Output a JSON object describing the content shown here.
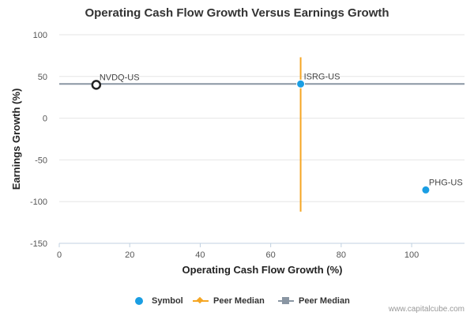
{
  "chart_data": {
    "type": "scatter",
    "title": "Operating Cash Flow Growth Versus Earnings Growth",
    "xlabel": "Operating Cash Flow Growth (%)",
    "ylabel": "Earnings Growth (%)",
    "xlim": [
      0,
      115
    ],
    "ylim": [
      -150,
      100
    ],
    "x_ticks": [
      0,
      20,
      40,
      60,
      80,
      100
    ],
    "y_ticks": [
      100,
      50,
      0,
      -50,
      -100,
      -150
    ],
    "grid": "horizontal",
    "points": [
      {
        "label": "NVDQ-US",
        "x": 10.5,
        "y": 40,
        "style": "hollow"
      },
      {
        "label": "ISRG-US",
        "x": 68.5,
        "y": 41,
        "style": "filled"
      },
      {
        "label": "PHG-US",
        "x": 104,
        "y": -86,
        "style": "filled"
      }
    ],
    "peer_median_x": {
      "x": 68.5,
      "y_from": -112,
      "y_to": 73
    },
    "peer_median_y": {
      "y": 41,
      "x_from": 0,
      "x_to": 115
    },
    "legend": {
      "placement": "bottom",
      "items": [
        {
          "label": "Symbol",
          "marker": "dot",
          "color": "#1a9ee3"
        },
        {
          "label": "Peer Median",
          "marker": "diamond-line",
          "color": "#f5a623"
        },
        {
          "label": "Peer Median",
          "marker": "square-line",
          "color": "#8a96a3"
        }
      ]
    }
  },
  "colors": {
    "symbol": "#1a9ee3",
    "peer_median_vertical": "#f5a623",
    "peer_median_horizontal": "#8a96a3",
    "hollow_marker": "#222222"
  },
  "credit": "www.capitalcube.com"
}
